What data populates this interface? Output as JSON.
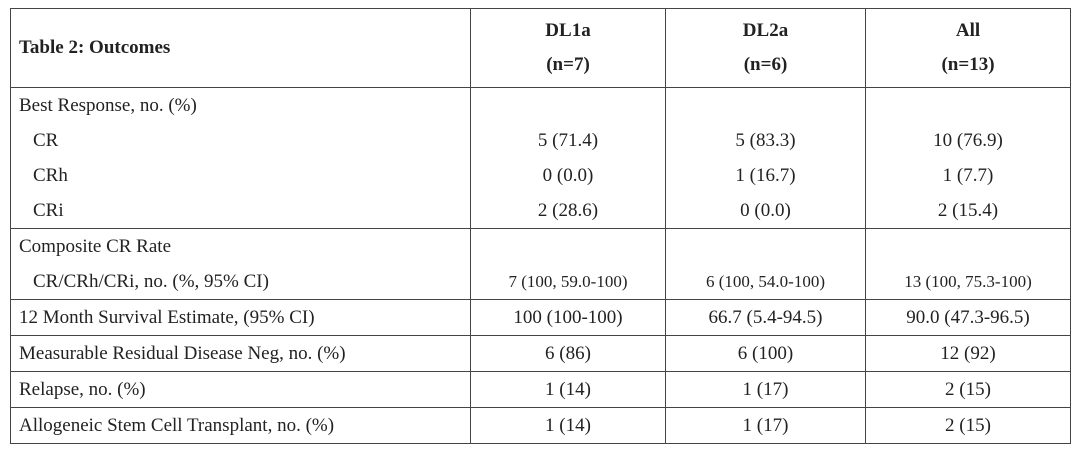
{
  "table": {
    "title": "Table 2: Outcomes",
    "columns": [
      {
        "name": "DL1a",
        "n": "(n=7)"
      },
      {
        "name": "DL2a",
        "n": "(n=6)"
      },
      {
        "name": "All",
        "n": "(n=13)"
      }
    ],
    "groups": [
      {
        "lines": [
          {
            "label": "Best Response, no. (%)"
          },
          {
            "label": "CR",
            "cells": [
              "5 (71.4)",
              "5 (83.3)",
              "10 (76.9)"
            ]
          },
          {
            "label": "CRh",
            "cells": [
              "0 (0.0)",
              "1 (16.7)",
              "1 (7.7)"
            ]
          },
          {
            "label": "CRi",
            "cells": [
              "2 (28.6)",
              "0 (0.0)",
              "2 (15.4)"
            ]
          }
        ]
      },
      {
        "lines": [
          {
            "label": "Composite CR Rate"
          },
          {
            "label": "CR/CRh/CRi, no. (%, 95% CI)",
            "cells": [
              "7 (100, 59.0-100)",
              "6 (100, 54.0-100)",
              "13 (100, 75.3-100)"
            ]
          }
        ]
      },
      {
        "lines": [
          {
            "label": "12 Month Survival Estimate, (95% CI)",
            "cells": [
              "100 (100-100)",
              "66.7 (5.4-94.5)",
              "90.0 (47.3-96.5)"
            ]
          }
        ]
      },
      {
        "lines": [
          {
            "label": "Measurable Residual Disease Neg, no. (%)",
            "cells": [
              "6 (86)",
              "6 (100)",
              "12 (92)"
            ]
          }
        ]
      },
      {
        "lines": [
          {
            "label": "Relapse, no. (%)",
            "cells": [
              "1 (14)",
              "1 (17)",
              "2 (15)"
            ]
          }
        ]
      },
      {
        "lines": [
          {
            "label": "Allogeneic Stem Cell Transplant, no. (%)",
            "cells": [
              "1 (14)",
              "1 (17)",
              "2 (15)"
            ]
          }
        ]
      }
    ]
  }
}
